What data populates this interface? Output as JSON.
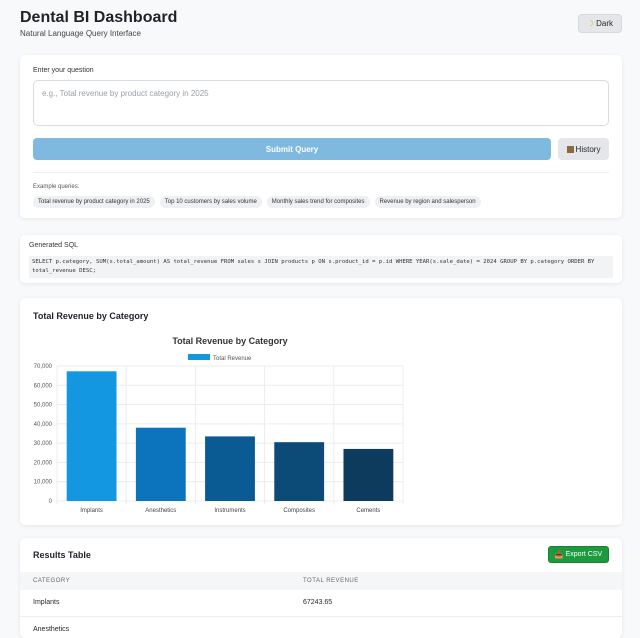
{
  "header": {
    "title": "Dental BI Dashboard",
    "subtitle": "Natural Language Query Interface",
    "theme_toggle": "Dark",
    "theme_icon": "moon-icon"
  },
  "query": {
    "label": "Enter your question",
    "placeholder": "e.g., Total revenue by product category in 2025",
    "value": "",
    "submit_label": "Submit Query",
    "history_label": "History",
    "examples_label": "Example queries:",
    "examples": [
      "Total revenue by product category in 2025",
      "Top 10 customers by sales volume",
      "Monthly sales trend for composites",
      "Revenue by region and salesperson"
    ]
  },
  "sql": {
    "label": "Generated SQL",
    "text": "SELECT p.category, SUM(s.total_amount) AS total_revenue FROM sales s JOIN products p ON s.product_id = p.id WHERE YEAR(s.sale_date) = 2024 GROUP BY p.category ORDER BY total_revenue DESC;"
  },
  "chart_section": {
    "title": "Total Revenue by Category"
  },
  "chart_data": {
    "type": "bar",
    "title": "Total Revenue by Category",
    "categories": [
      "Implants",
      "Anesthetics",
      "Instruments",
      "Composites",
      "Cements"
    ],
    "series": [
      {
        "name": "Total Revenue",
        "values": [
          67243.65,
          38000,
          33500,
          30500,
          27000
        ]
      }
    ],
    "colors": [
      "#1297e0",
      "#0b74bd",
      "#0a5a93",
      "#0c4a78",
      "#0d3b5e"
    ],
    "ylim": [
      0,
      70000
    ],
    "yticks": [
      "0",
      "10,000",
      "20,000",
      "30,000",
      "40,000",
      "50,000",
      "60,000",
      "70,000"
    ],
    "legend": "top",
    "grid": true
  },
  "results": {
    "title": "Results Table",
    "export_label": "Export CSV",
    "columns": [
      "CATEGORY",
      "TOTAL REVENUE"
    ],
    "rows": [
      [
        "Implants",
        "67243.65"
      ],
      [
        "Anesthetics",
        ""
      ]
    ]
  }
}
